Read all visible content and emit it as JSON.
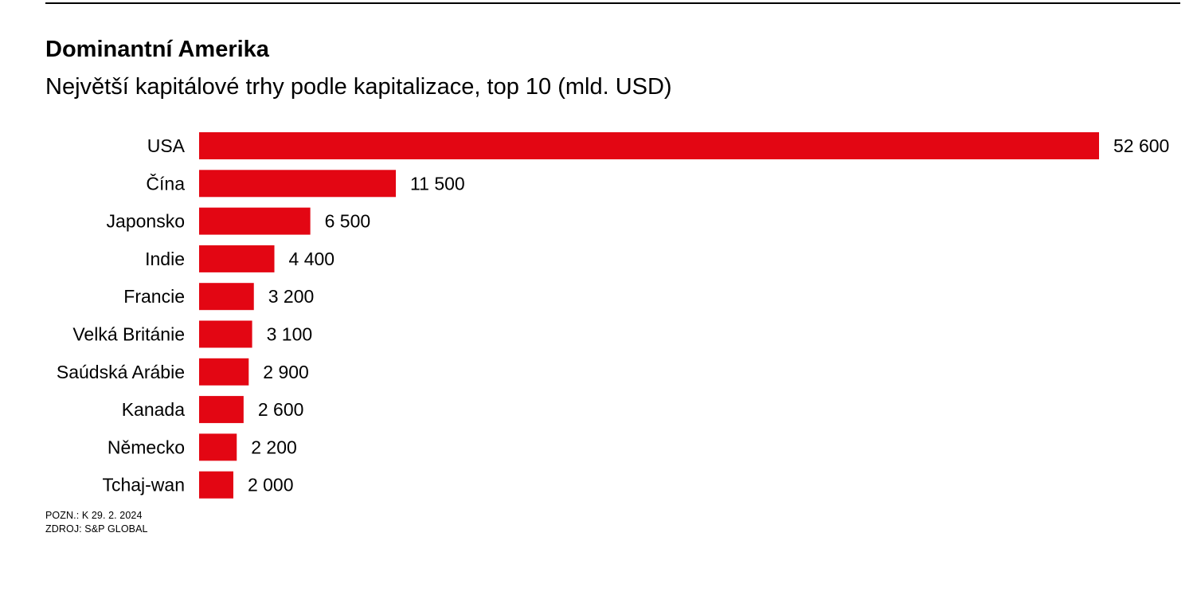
{
  "chart_data": {
    "type": "bar",
    "orientation": "horizontal",
    "title": "Dominantní Amerika",
    "subtitle": "Největší kapitálové trhy podle kapitalizace, top 10 (mld. USD)",
    "categories": [
      "USA",
      "Čína",
      "Japonsko",
      "Indie",
      "Francie",
      "Velká Británie",
      "Saúdská Arábie",
      "Kanada",
      "Německo",
      "Tchaj-wan"
    ],
    "values": [
      52600,
      11500,
      6500,
      4400,
      3200,
      3100,
      2900,
      2600,
      2200,
      2000
    ],
    "value_labels": [
      "52 600",
      "11 500",
      "6 500",
      "4 400",
      "3 200",
      "3 100",
      "2 900",
      "2 600",
      "2 200",
      "2 000"
    ],
    "xlim": [
      0,
      52600
    ],
    "grid": false,
    "bar_color": "#e30613"
  },
  "footnotes": {
    "note": "POZN.: K 29. 2. 2024",
    "source": "ZDROJ: S&P GLOBAL"
  }
}
